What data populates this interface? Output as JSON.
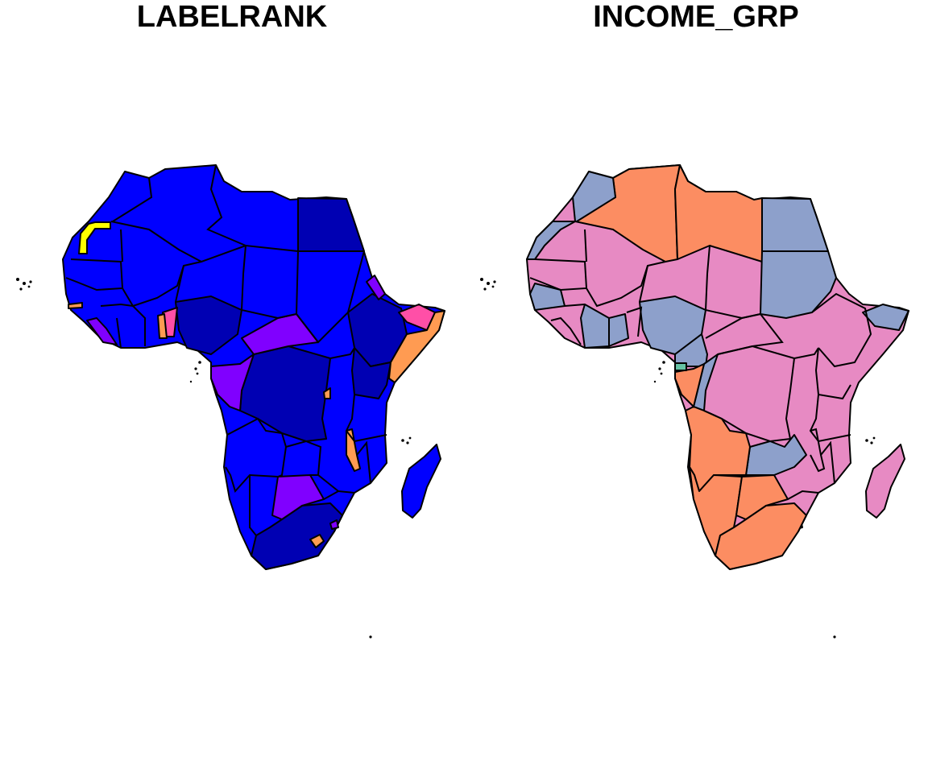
{
  "panels": [
    {
      "title": "LABELRANK"
    },
    {
      "title": "INCOME_GRP"
    }
  ],
  "palette": {
    "labelrank": {
      "2": "#0000b3",
      "3": "#0000ff",
      "4": "#8000ff",
      "5": "#ff4fa7",
      "6": "#ff9b52",
      "7": "#ffff00"
    },
    "income": {
      "high_nonoecd": "#66c2a5",
      "upper_middle": "#fc8d62",
      "lower_middle": "#8da0cb",
      "low": "#e78ac3"
    }
  }
}
